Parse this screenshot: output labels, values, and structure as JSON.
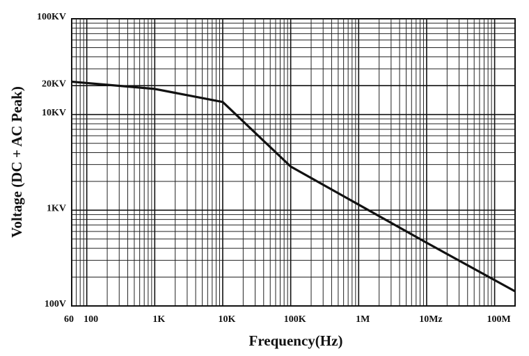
{
  "chart_data": {
    "type": "line",
    "x_label": "Frequency(Hz)",
    "y_label": "Voltage (DC + AC Peak)",
    "x": [
      60,
      1000,
      10000,
      100000,
      10000000,
      200000000
    ],
    "values": [
      22000,
      18500,
      13500,
      2860,
      457,
      142
    ],
    "color": "#111111",
    "xlog": true,
    "ylog": true,
    "minor_grid": true,
    "xlim": [
      60,
      200000000
    ],
    "ylim": [
      100,
      100000
    ],
    "xticks": [
      60,
      100,
      {
        "value": 1000,
        "label": "1K"
      },
      {
        "value": 10000,
        "label": "10K"
      },
      {
        "value": 100000,
        "label": "100K"
      },
      {
        "value": 1000000,
        "label": "1M"
      },
      {
        "value": 10000000,
        "label": "10Mz"
      },
      {
        "value": 100000000,
        "label": "100M"
      }
    ],
    "yticks": [
      {
        "value": 100,
        "label": "100V"
      },
      {
        "value": 1000,
        "label": "1KV"
      },
      {
        "value": 10000,
        "label": "10KV"
      },
      {
        "value": 20000,
        "label": "20KV"
      },
      {
        "value": 100000,
        "label": "100KV"
      }
    ]
  }
}
